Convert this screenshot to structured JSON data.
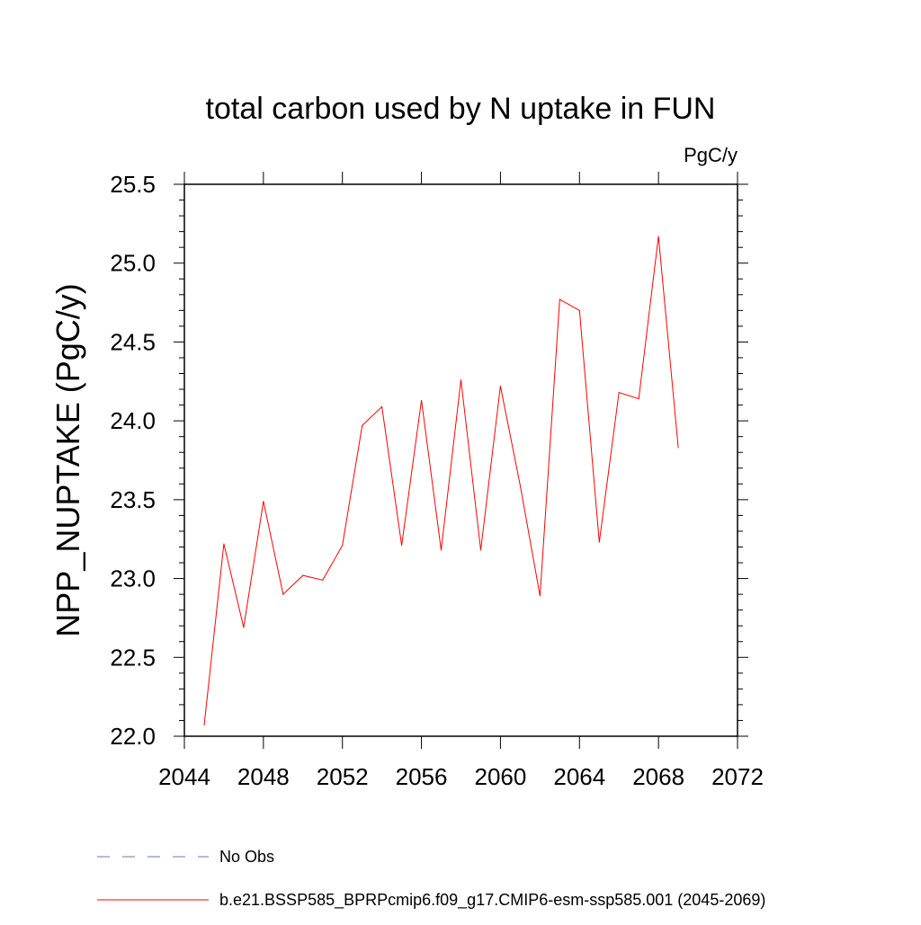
{
  "chart_data": {
    "type": "line",
    "title": "total carbon used by N uptake in FUN",
    "units": "PgC/y",
    "ylabel": "NPP_NUPTAKE  (PgC/y)",
    "xlabel": "",
    "xlim": [
      2044,
      2072
    ],
    "ylim": [
      22.0,
      25.5
    ],
    "xticks": [
      "2044",
      "2048",
      "2052",
      "2056",
      "2060",
      "2064",
      "2068",
      "2072"
    ],
    "yticks": [
      "22.0",
      "22.5",
      "23.0",
      "23.5",
      "24.0",
      "24.5",
      "25.0",
      "25.5"
    ],
    "grid": false,
    "legend_position": "bottom",
    "series": [
      {
        "name": "b.e21.BSSP585_BPRPcmip6.f09_g17.CMIP6-esm-ssp585.001 (2045-2069)",
        "color": "#ff0000",
        "style": "solid",
        "x": [
          2045,
          2046,
          2047,
          2048,
          2049,
          2050,
          2051,
          2052,
          2053,
          2054,
          2055,
          2056,
          2057,
          2058,
          2059,
          2060,
          2061,
          2062,
          2063,
          2064,
          2065,
          2066,
          2067,
          2068,
          2069
        ],
        "values": [
          22.07,
          23.22,
          22.69,
          23.49,
          22.9,
          23.02,
          22.99,
          23.21,
          23.97,
          24.09,
          23.21,
          24.13,
          23.18,
          24.26,
          23.18,
          24.22,
          23.59,
          22.89,
          24.77,
          24.7,
          23.23,
          24.18,
          24.14,
          25.17,
          23.83
        ]
      }
    ],
    "legend": [
      {
        "label": "No Obs",
        "color": "#7070b0",
        "style": "dashed"
      },
      {
        "label": "b.e21.BSSP585_BPRPcmip6.f09_g17.CMIP6-esm-ssp585.001 (2045-2069)",
        "color": "#ff0000",
        "style": "solid"
      }
    ]
  }
}
